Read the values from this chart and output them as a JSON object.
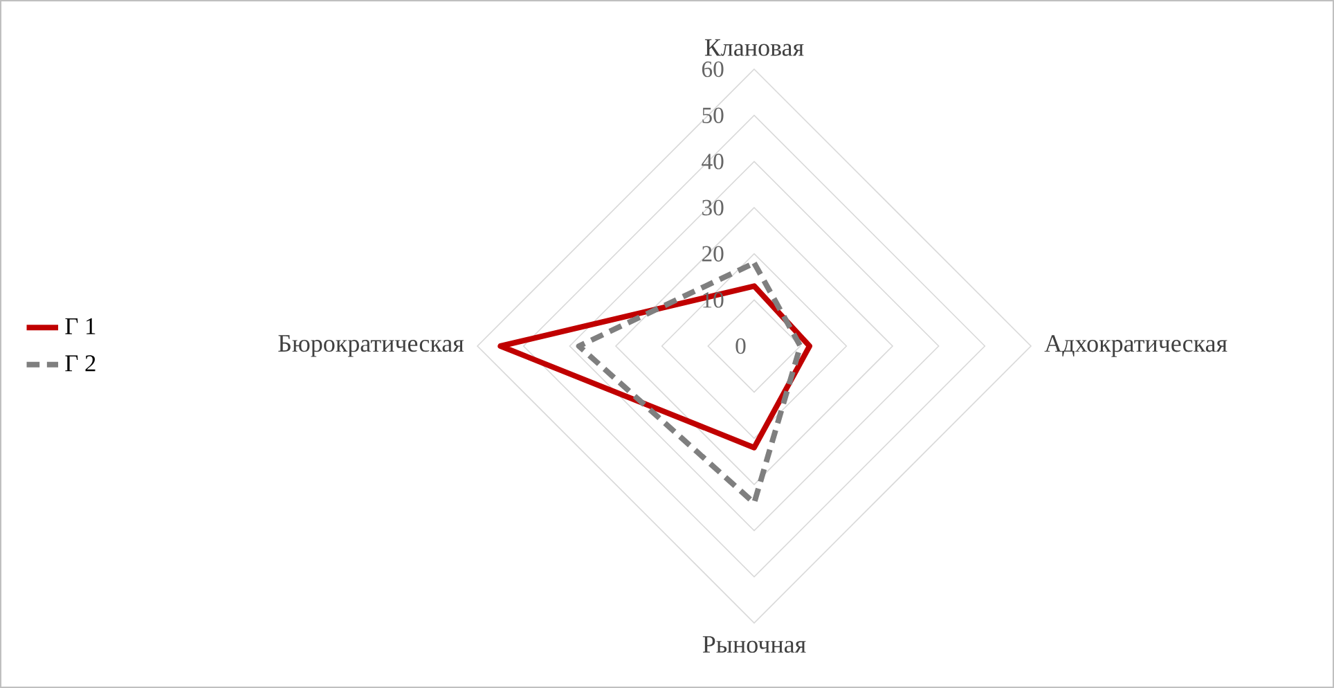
{
  "chart_data": {
    "type": "radar",
    "categories": [
      "Клановая",
      "Адхократическая",
      "Рыночная",
      "Бюрократическая"
    ],
    "series": [
      {
        "name": "Г 1",
        "color": "#c00000",
        "line_style": "solid",
        "values": [
          13,
          12,
          22,
          55
        ]
      },
      {
        "name": "Г 2",
        "color": "#7f7f7f",
        "line_style": "dashed",
        "values": [
          18,
          10,
          34,
          38
        ]
      }
    ],
    "ylim": [
      0,
      60
    ],
    "yticks": [
      {
        "value": 0,
        "label": "0"
      },
      10,
      20,
      30,
      40,
      50,
      60
    ],
    "grid": true,
    "legend": "left"
  }
}
